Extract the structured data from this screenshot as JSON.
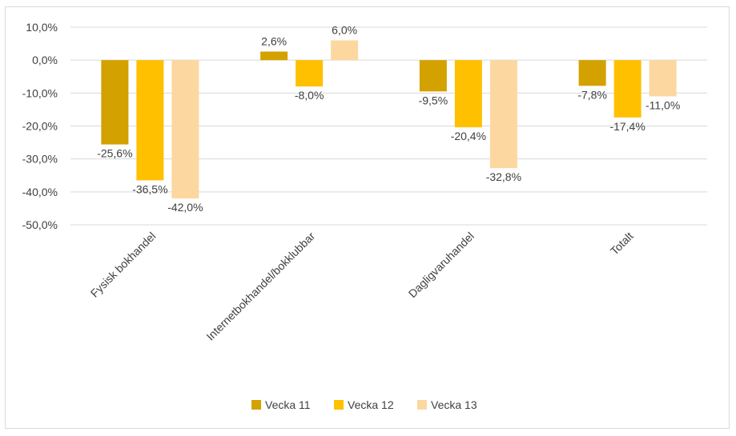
{
  "chart_data": {
    "type": "bar",
    "categories": [
      "Fysisk bokhandel",
      "Internetbokhandel/bokklubbar",
      "Dagligvaruhandel",
      "Totalt"
    ],
    "series": [
      {
        "name": "Vecka 11",
        "color": "#d3a100",
        "values": [
          -25.6,
          2.6,
          -9.5,
          -7.8
        ],
        "labels": [
          "-25,6%",
          "2,6%",
          "-9,5%",
          "-7,8%"
        ]
      },
      {
        "name": "Vecka 12",
        "color": "#ffc000",
        "values": [
          -36.5,
          -8.0,
          -20.4,
          -17.4
        ],
        "labels": [
          "-36,5%",
          "-8,0%",
          "-20,4%",
          "-17,4%"
        ]
      },
      {
        "name": "Vecka 13",
        "color": "#fcd8a0",
        "values": [
          -42.0,
          6.0,
          -32.8,
          -11.0
        ],
        "labels": [
          "-42,0%",
          "6,0%",
          "-32,8%",
          "-11,0%"
        ]
      }
    ],
    "ylim": [
      -50,
      10
    ],
    "yticks": [
      10,
      0,
      -10,
      -20,
      -30,
      -40,
      -50
    ],
    "ytick_labels": [
      "10,0%",
      "0,0%",
      "-10,0%",
      "-20,0%",
      "-30,0%",
      "-40,0%",
      "-50,0%"
    ],
    "grid": true,
    "legend_position": "bottom",
    "title": "",
    "xlabel": "",
    "ylabel": ""
  }
}
